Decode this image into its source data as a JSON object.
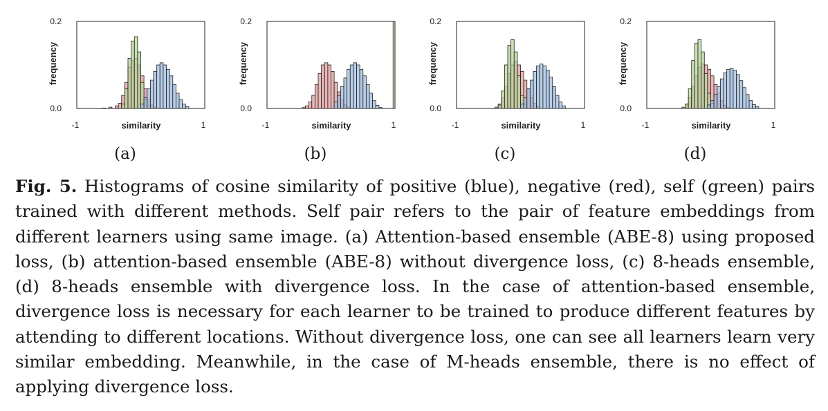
{
  "figure": {
    "label": "Fig. 5.",
    "caption": "Histograms of cosine similarity of positive (blue), negative (red), self (green) pairs trained with different methods. Self pair refers to the pair of feature embeddings from different learners using same image. (a) Attention-based ensemble (ABE-8) using proposed loss, (b) attention-based ensemble (ABE-8) without divergence loss, (c) 8-heads ensemble, (d) 8-heads ensemble with divergence loss. In the case of attention-based ensemble, divergence loss is necessary for each learner to be trained to produce different features by attending to different locations. Without divergence loss, one can see all learners learn very similar embedding. Meanwhile, in the case of M-heads ensemble, there is no effect of applying divergence loss."
  },
  "colors": {
    "positive": "#9dbbdf",
    "negative": "#e29a9a",
    "self": "#b6d499",
    "edge": "#222222"
  },
  "chart_data": [
    {
      "type": "bar",
      "subplot_label": "(a)",
      "xlabel": "similarity",
      "ylabel": "frequency",
      "xlim": [
        -1,
        1
      ],
      "ylim": [
        0,
        0.2
      ],
      "xticks": [
        "-1",
        "1"
      ],
      "yticks": [
        "0.0",
        "0.2"
      ],
      "series": [
        {
          "color_key": "negative",
          "bins": [
            [
              -0.6,
              0.001
            ],
            [
              -0.5,
              0.003
            ],
            [
              -0.4,
              0.006
            ],
            [
              -0.35,
              0.012
            ],
            [
              -0.3,
              0.03
            ],
            [
              -0.25,
              0.06
            ],
            [
              -0.2,
              0.095
            ],
            [
              -0.15,
              0.11
            ],
            [
              -0.1,
              0.115
            ],
            [
              -0.05,
              0.1
            ],
            [
              0.0,
              0.075
            ],
            [
              0.05,
              0.045
            ],
            [
              0.1,
              0.02
            ],
            [
              0.15,
              0.008
            ],
            [
              0.2,
              0.003
            ]
          ]
        },
        {
          "color_key": "self",
          "bins": [
            [
              -0.3,
              0.01
            ],
            [
              -0.25,
              0.045
            ],
            [
              -0.2,
              0.115
            ],
            [
              -0.15,
              0.155
            ],
            [
              -0.1,
              0.165
            ],
            [
              -0.05,
              0.13
            ],
            [
              0.0,
              0.06
            ],
            [
              0.05,
              0.02
            ],
            [
              0.1,
              0.006
            ]
          ]
        },
        {
          "color_key": "positive",
          "bins": [
            [
              0.0,
              0.01
            ],
            [
              0.05,
              0.025
            ],
            [
              0.1,
              0.045
            ],
            [
              0.15,
              0.065
            ],
            [
              0.2,
              0.085
            ],
            [
              0.25,
              0.1
            ],
            [
              0.3,
              0.105
            ],
            [
              0.35,
              0.1
            ],
            [
              0.4,
              0.09
            ],
            [
              0.45,
              0.075
            ],
            [
              0.5,
              0.055
            ],
            [
              0.55,
              0.035
            ],
            [
              0.6,
              0.02
            ],
            [
              0.65,
              0.01
            ],
            [
              0.7,
              0.004
            ]
          ]
        }
      ]
    },
    {
      "type": "bar",
      "subplot_label": "(b)",
      "xlabel": "similarity",
      "ylabel": "frequency",
      "xlim": [
        -1,
        1
      ],
      "ylim": [
        0,
        0.2
      ],
      "xticks": [
        "-1",
        "1"
      ],
      "yticks": [
        "0.0",
        "0.2"
      ],
      "series": [
        {
          "color_key": "negative",
          "bins": [
            [
              -0.45,
              0.002
            ],
            [
              -0.4,
              0.006
            ],
            [
              -0.35,
              0.015
            ],
            [
              -0.3,
              0.03
            ],
            [
              -0.25,
              0.055
            ],
            [
              -0.2,
              0.08
            ],
            [
              -0.15,
              0.1
            ],
            [
              -0.1,
              0.105
            ],
            [
              -0.05,
              0.1
            ],
            [
              0.0,
              0.085
            ],
            [
              0.05,
              0.06
            ],
            [
              0.1,
              0.038
            ],
            [
              0.15,
              0.02
            ],
            [
              0.2,
              0.008
            ],
            [
              0.25,
              0.003
            ]
          ]
        },
        {
          "color_key": "positive",
          "bins": [
            [
              0.05,
              0.015
            ],
            [
              0.1,
              0.03
            ],
            [
              0.15,
              0.05
            ],
            [
              0.2,
              0.07
            ],
            [
              0.25,
              0.09
            ],
            [
              0.3,
              0.1
            ],
            [
              0.35,
              0.105
            ],
            [
              0.4,
              0.1
            ],
            [
              0.45,
              0.09
            ],
            [
              0.5,
              0.075
            ],
            [
              0.55,
              0.055
            ],
            [
              0.6,
              0.035
            ],
            [
              0.65,
              0.018
            ],
            [
              0.7,
              0.007
            ],
            [
              0.75,
              0.002
            ]
          ]
        },
        {
          "color_key": "self",
          "bins": [
            [
              0.97,
              0.2
            ]
          ]
        }
      ]
    },
    {
      "type": "bar",
      "subplot_label": "(c)",
      "xlabel": "similarity",
      "ylabel": "frequency",
      "xlim": [
        -1,
        1
      ],
      "ylim": [
        0,
        0.2
      ],
      "xticks": [
        "-1",
        "1"
      ],
      "yticks": [
        "0.0",
        "0.2"
      ],
      "series": [
        {
          "color_key": "negative",
          "bins": [
            [
              -0.4,
              0.003
            ],
            [
              -0.35,
              0.01
            ],
            [
              -0.3,
              0.025
            ],
            [
              -0.25,
              0.05
            ],
            [
              -0.2,
              0.08
            ],
            [
              -0.15,
              0.1
            ],
            [
              -0.1,
              0.108
            ],
            [
              -0.05,
              0.1
            ],
            [
              0.0,
              0.085
            ],
            [
              0.05,
              0.065
            ],
            [
              0.1,
              0.045
            ],
            [
              0.15,
              0.025
            ],
            [
              0.2,
              0.012
            ],
            [
              0.25,
              0.004
            ]
          ]
        },
        {
          "color_key": "self",
          "bins": [
            [
              -0.35,
              0.008
            ],
            [
              -0.3,
              0.04
            ],
            [
              -0.25,
              0.1
            ],
            [
              -0.2,
              0.145
            ],
            [
              -0.15,
              0.158
            ],
            [
              -0.1,
              0.13
            ],
            [
              -0.05,
              0.075
            ],
            [
              0.0,
              0.03
            ],
            [
              0.05,
              0.01
            ]
          ]
        },
        {
          "color_key": "positive",
          "bins": [
            [
              0.0,
              0.01
            ],
            [
              0.05,
              0.025
            ],
            [
              0.1,
              0.045
            ],
            [
              0.15,
              0.065
            ],
            [
              0.2,
              0.085
            ],
            [
              0.25,
              0.098
            ],
            [
              0.3,
              0.102
            ],
            [
              0.35,
              0.098
            ],
            [
              0.4,
              0.088
            ],
            [
              0.45,
              0.072
            ],
            [
              0.5,
              0.05
            ],
            [
              0.55,
              0.03
            ],
            [
              0.6,
              0.015
            ],
            [
              0.65,
              0.006
            ]
          ]
        }
      ]
    },
    {
      "type": "bar",
      "subplot_label": "(d)",
      "xlabel": "similarity",
      "ylabel": "frequency",
      "xlim": [
        -1,
        1
      ],
      "ylim": [
        0,
        0.2
      ],
      "xticks": [
        "-1",
        "1"
      ],
      "yticks": [
        "0.0",
        "0.2"
      ],
      "series": [
        {
          "color_key": "negative",
          "bins": [
            [
              -0.45,
              0.003
            ],
            [
              -0.4,
              0.01
            ],
            [
              -0.35,
              0.025
            ],
            [
              -0.3,
              0.05
            ],
            [
              -0.25,
              0.075
            ],
            [
              -0.2,
              0.095
            ],
            [
              -0.15,
              0.102
            ],
            [
              -0.1,
              0.1
            ],
            [
              -0.05,
              0.09
            ],
            [
              0.0,
              0.075
            ],
            [
              0.05,
              0.055
            ],
            [
              0.1,
              0.035
            ],
            [
              0.15,
              0.018
            ],
            [
              0.2,
              0.007
            ],
            [
              0.25,
              0.002
            ]
          ]
        },
        {
          "color_key": "self",
          "bins": [
            [
              -0.4,
              0.01
            ],
            [
              -0.35,
              0.045
            ],
            [
              -0.3,
              0.11
            ],
            [
              -0.25,
              0.15
            ],
            [
              -0.2,
              0.158
            ],
            [
              -0.15,
              0.13
            ],
            [
              -0.1,
              0.08
            ],
            [
              -0.05,
              0.035
            ],
            [
              0.0,
              0.012
            ]
          ]
        },
        {
          "color_key": "positive",
          "bins": [
            [
              -0.05,
              0.008
            ],
            [
              0.0,
              0.018
            ],
            [
              0.05,
              0.032
            ],
            [
              0.1,
              0.05
            ],
            [
              0.15,
              0.068
            ],
            [
              0.2,
              0.082
            ],
            [
              0.25,
              0.09
            ],
            [
              0.3,
              0.092
            ],
            [
              0.35,
              0.088
            ],
            [
              0.4,
              0.078
            ],
            [
              0.45,
              0.064
            ],
            [
              0.5,
              0.048
            ],
            [
              0.55,
              0.032
            ],
            [
              0.6,
              0.018
            ],
            [
              0.65,
              0.009
            ],
            [
              0.7,
              0.004
            ]
          ]
        }
      ]
    }
  ]
}
